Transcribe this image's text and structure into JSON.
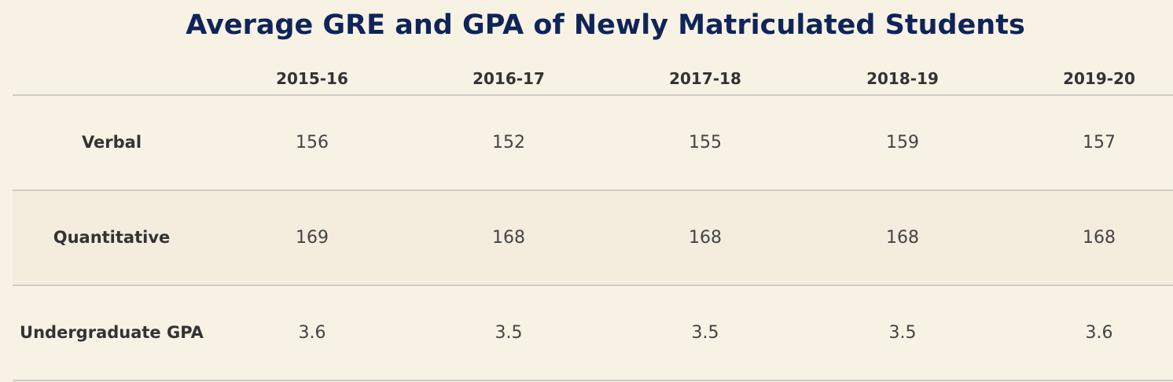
{
  "chart_data": {
    "type": "table",
    "title": "Average GRE and GPA of Newly Matriculated Students",
    "columns": [
      "2015-16",
      "2016-17",
      "2017-18",
      "2018-19",
      "2019-20"
    ],
    "rows": [
      {
        "label": "Verbal",
        "values": [
          "156",
          "152",
          "155",
          "159",
          "157"
        ]
      },
      {
        "label": "Quantitative",
        "values": [
          "169",
          "168",
          "168",
          "168",
          "168"
        ]
      },
      {
        "label": "Undergraduate GPA",
        "values": [
          "3.6",
          "3.5",
          "3.5",
          "3.5",
          "3.6"
        ]
      }
    ]
  },
  "colors": {
    "background": "#f8f2e5",
    "band": "#f4ecdd",
    "title": "#0f2458",
    "text": "#333333",
    "rule": "#cfcbc2"
  }
}
